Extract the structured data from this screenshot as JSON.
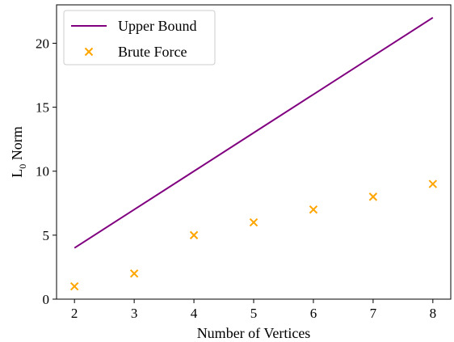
{
  "chart_data": {
    "type": "line",
    "title": "",
    "xlabel": "Number of Vertices",
    "ylabel_main": "L",
    "ylabel_sub": "0",
    "ylabel_rest": " Norm",
    "xlim": [
      1.7,
      8.3
    ],
    "ylim": [
      0,
      23
    ],
    "x_ticks": [
      2,
      3,
      4,
      5,
      6,
      7,
      8
    ],
    "y_ticks": [
      0,
      5,
      10,
      15,
      20
    ],
    "grid": false,
    "legend_position": "upper-left",
    "series": [
      {
        "name": "Upper Bound",
        "kind": "line",
        "color": "#800080",
        "x": [
          2,
          3,
          4,
          5,
          6,
          7,
          8
        ],
        "y": [
          4,
          7,
          10,
          13,
          16,
          19,
          22
        ]
      },
      {
        "name": "Brute Force",
        "kind": "scatter",
        "marker": "x",
        "color": "#FFA500",
        "x": [
          2,
          3,
          4,
          5,
          6,
          7,
          8
        ],
        "y": [
          1,
          2,
          5,
          6,
          7,
          8,
          9
        ]
      }
    ]
  }
}
